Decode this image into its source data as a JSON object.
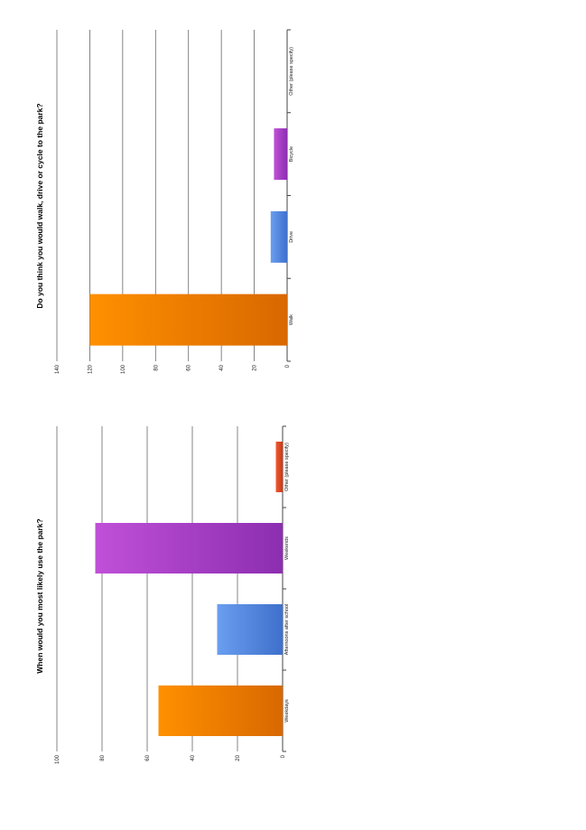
{
  "chart_data": [
    {
      "type": "bar",
      "title": "When would you most likely use the park?",
      "categories": [
        "Weekdays",
        "Afternoons after school",
        "Weekends",
        "Other (please specify)"
      ],
      "values": [
        55,
        29,
        83,
        3
      ],
      "colors": [
        "#f08000",
        "#5588dd",
        "#a040c8",
        "#dd4020"
      ],
      "ylim": [
        0,
        100
      ],
      "yticks": [
        "0",
        "20",
        "40",
        "60",
        "80",
        "100"
      ],
      "orientation": "rotated-90",
      "grid": true,
      "legend": "none"
    },
    {
      "type": "bar",
      "title": "Do you think you would walk, drive or cycle to the park?",
      "categories": [
        "Walk",
        "Drive",
        "Bicycle",
        "Other (please specify)"
      ],
      "values": [
        120,
        10,
        8,
        0
      ],
      "colors": [
        "#f08000",
        "#5588dd",
        "#a040c8",
        "#dd4020"
      ],
      "ylim": [
        0,
        140
      ],
      "yticks": [
        "0",
        "20",
        "40",
        "60",
        "80",
        "100",
        "120",
        "140"
      ],
      "orientation": "rotated-90",
      "grid": true,
      "legend": "none"
    }
  ]
}
